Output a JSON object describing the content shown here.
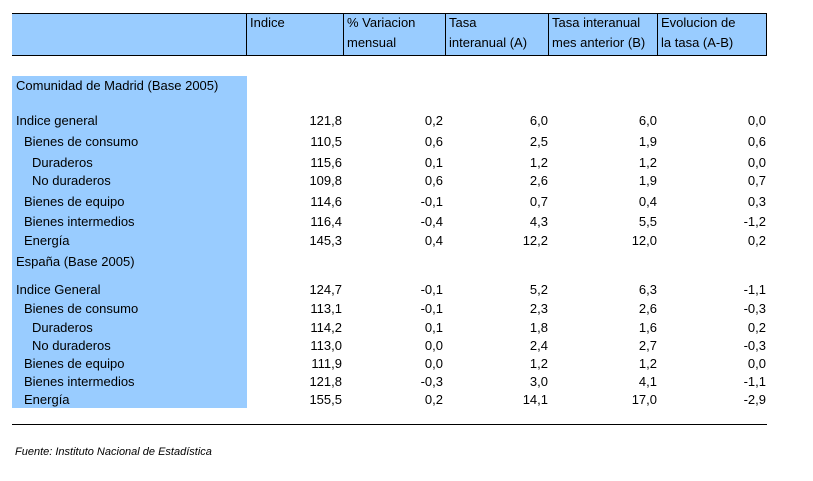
{
  "header": {
    "col1": [
      "Indice"
    ],
    "col2": [
      "% Variacion",
      "mensual"
    ],
    "col3": [
      "Tasa",
      "interanual (A)"
    ],
    "col4": [
      "Tasa interanual",
      "mes anterior (B)"
    ],
    "col5": [
      "Evolucion de",
      "la tasa (A-B)"
    ]
  },
  "sections": [
    {
      "title": "Comunidad de Madrid (Base 2005)",
      "rows": [
        {
          "label": "Indice general",
          "indent": 0,
          "values": [
            "121,8",
            "0,2",
            "6,0",
            "6,0",
            "0,0"
          ]
        },
        {
          "label": "Bienes de consumo",
          "indent": 1,
          "values": [
            "110,5",
            "0,6",
            "2,5",
            "1,9",
            "0,6"
          ]
        },
        {
          "label": "Duraderos",
          "indent": 2,
          "values": [
            "115,6",
            "0,1",
            "1,2",
            "1,2",
            "0,0"
          ]
        },
        {
          "label": "No duraderos",
          "indent": 2,
          "values": [
            "109,8",
            "0,6",
            "2,6",
            "1,9",
            "0,7"
          ]
        },
        {
          "label": "Bienes de equipo",
          "indent": 1,
          "values": [
            "114,6",
            "-0,1",
            "0,7",
            "0,4",
            "0,3"
          ]
        },
        {
          "label": "Bienes intermedios",
          "indent": 1,
          "values": [
            "116,4",
            "-0,4",
            "4,3",
            "5,5",
            "-1,2"
          ]
        },
        {
          "label": "Energía",
          "indent": 1,
          "values": [
            "145,3",
            "0,4",
            "12,2",
            "12,0",
            "0,2"
          ]
        }
      ]
    },
    {
      "title": "España (Base 2005)",
      "rows": [
        {
          "label": "Indice General",
          "indent": 0,
          "values": [
            "124,7",
            "-0,1",
            "5,2",
            "6,3",
            "-1,1"
          ]
        },
        {
          "label": "Bienes de consumo",
          "indent": 1,
          "values": [
            "113,1",
            "-0,1",
            "2,3",
            "2,6",
            "-0,3"
          ]
        },
        {
          "label": "Duraderos",
          "indent": 2,
          "values": [
            "114,2",
            "0,1",
            "1,8",
            "1,6",
            "0,2"
          ]
        },
        {
          "label": "No duraderos",
          "indent": 2,
          "values": [
            "113,0",
            "0,0",
            "2,4",
            "2,7",
            "-0,3"
          ]
        },
        {
          "label": "Bienes de equipo",
          "indent": 1,
          "values": [
            "111,9",
            "0,0",
            "1,2",
            "1,2",
            "0,0"
          ]
        },
        {
          "label": "Bienes intermedios",
          "indent": 1,
          "values": [
            "121,8",
            "-0,3",
            "3,0",
            "4,1",
            "-1,1"
          ]
        },
        {
          "label": "Energía",
          "indent": 1,
          "values": [
            "155,5",
            "0,2",
            "14,1",
            "17,0",
            "-2,9"
          ]
        }
      ]
    }
  ],
  "source": "Fuente: Instituto Nacional de Estadística"
}
